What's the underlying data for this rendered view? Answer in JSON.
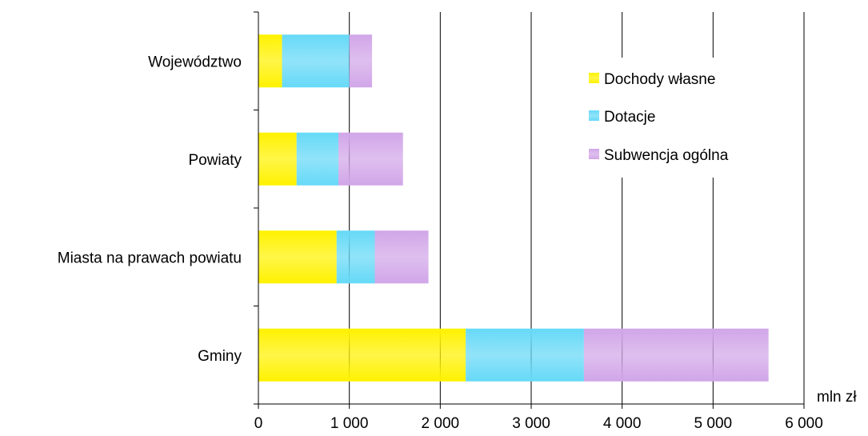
{
  "chart_data": {
    "type": "bar",
    "orientation": "horizontal",
    "stacked": true,
    "categories": [
      "Województwo",
      "Powiaty",
      "Miasta na prawach powiatu",
      "Gminy"
    ],
    "series": [
      {
        "name": "Dochody własne",
        "values": [
          260,
          420,
          860,
          2280
        ],
        "color": "#fff200"
      },
      {
        "name": "Dotacje",
        "values": [
          740,
          460,
          420,
          1300
        ],
        "color": "#66d9f7"
      },
      {
        "name": "Subwencja ogólna",
        "values": [
          250,
          710,
          590,
          2030
        ],
        "color": "#d1a6e8"
      }
    ],
    "xlim": [
      0,
      6000
    ],
    "xticks": [
      0,
      1000,
      2000,
      3000,
      4000,
      5000,
      6000
    ],
    "xtick_labels": [
      "0",
      "1 000",
      "2 000",
      "3 000",
      "4 000",
      "5 000",
      "6 000"
    ],
    "x_unit": "mln zł",
    "grid": "vertical",
    "legend": {
      "position": "top-right",
      "items": [
        "Dochody własne",
        "Dotacje",
        "Subwencja ogólna"
      ]
    }
  }
}
